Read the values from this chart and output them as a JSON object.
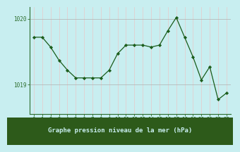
{
  "x": [
    0,
    1,
    2,
    3,
    4,
    5,
    6,
    7,
    8,
    9,
    10,
    11,
    12,
    13,
    14,
    15,
    16,
    17,
    18,
    19,
    20,
    21,
    22,
    23
  ],
  "y": [
    1019.72,
    1019.72,
    1019.57,
    1019.37,
    1019.22,
    1019.1,
    1019.1,
    1019.1,
    1019.1,
    1019.22,
    1019.47,
    1019.6,
    1019.6,
    1019.6,
    1019.57,
    1019.6,
    1019.82,
    1020.02,
    1019.72,
    1019.42,
    1019.07,
    1019.27,
    1018.77,
    1018.87
  ],
  "line_color": "#1a5c1a",
  "marker": "D",
  "marker_size": 2.2,
  "background_color": "#c8eef0",
  "grid_color": "#b0b0b0",
  "pink_grid_color": "#e8c8c8",
  "xlabel": "Graphe pression niveau de la mer (hPa)",
  "xlabel_fontsize": 6.5,
  "ytick_labels": [
    "1019",
    "1020"
  ],
  "ytick_values": [
    1019.0,
    1020.0
  ],
  "ylim": [
    1018.55,
    1020.18
  ],
  "xlim": [
    -0.5,
    23.5
  ],
  "xtick_values": [
    0,
    1,
    2,
    3,
    4,
    5,
    6,
    7,
    8,
    9,
    10,
    11,
    12,
    13,
    14,
    15,
    16,
    17,
    18,
    19,
    20,
    21,
    22,
    23
  ],
  "tick_fontsize": 5.5,
  "axis_color": "#2d6e2d",
  "bottom_bar_color": "#2d5a1a",
  "xlabel_color": "#c8eef0"
}
